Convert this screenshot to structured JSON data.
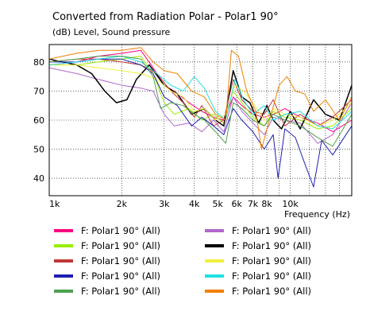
{
  "chart_data": {
    "type": "line",
    "title": "Converted from Radiation Polar - Polar1 90°",
    "ylabel": "(dB)  Level, Sound pressure",
    "xlabel": "Frequency  (Hz)",
    "x_scale": "log",
    "xlim": [
      1000,
      18000
    ],
    "ylim": [
      34,
      86
    ],
    "grid": true,
    "x_ticks": [
      {
        "value": 1000,
        "label": "1k"
      },
      {
        "value": 2000,
        "label": "2k"
      },
      {
        "value": 3000,
        "label": "3k"
      },
      {
        "value": 4000,
        "label": "4k"
      },
      {
        "value": 5000,
        "label": "5k"
      },
      {
        "value": 6000,
        "label": "6k"
      },
      {
        "value": 7000,
        "label": "7k"
      },
      {
        "value": 8000,
        "label": "8k"
      },
      {
        "value": 10000,
        "label": "10k"
      }
    ],
    "x_minor_ticks": [
      9000,
      12000,
      14000,
      16000
    ],
    "y_ticks": [
      40,
      50,
      60,
      70,
      80
    ],
    "legend_position": "bottom",
    "series": [
      {
        "name": "F: Polar1 90°  (All)",
        "color": "#ff0080",
        "points": [
          [
            1000,
            79
          ],
          [
            1300,
            80
          ],
          [
            1600,
            82
          ],
          [
            2000,
            83
          ],
          [
            2400,
            84
          ],
          [
            2700,
            78
          ],
          [
            3000,
            72
          ],
          [
            3300,
            70
          ],
          [
            3800,
            66
          ],
          [
            4300,
            63
          ],
          [
            4800,
            61
          ],
          [
            5300,
            60
          ],
          [
            5800,
            68
          ],
          [
            6300,
            65
          ],
          [
            7000,
            62
          ],
          [
            7800,
            61
          ],
          [
            8500,
            62
          ],
          [
            9500,
            64
          ],
          [
            11000,
            61
          ],
          [
            13000,
            59
          ],
          [
            15000,
            56
          ],
          [
            18000,
            60
          ]
        ]
      },
      {
        "name": "F: Polar1 90°  (All)",
        "color": "#b266cc",
        "points": [
          [
            1000,
            78
          ],
          [
            1300,
            76
          ],
          [
            1600,
            74
          ],
          [
            2000,
            72
          ],
          [
            2400,
            71
          ],
          [
            2700,
            70
          ],
          [
            3000,
            62
          ],
          [
            3300,
            58
          ],
          [
            3800,
            59
          ],
          [
            4300,
            56
          ],
          [
            4800,
            60
          ],
          [
            5300,
            56
          ],
          [
            5800,
            68
          ],
          [
            6300,
            63
          ],
          [
            7000,
            59
          ],
          [
            7800,
            55
          ],
          [
            8500,
            61
          ],
          [
            9500,
            60
          ],
          [
            11000,
            59
          ],
          [
            13000,
            52
          ],
          [
            15000,
            55
          ],
          [
            18000,
            66
          ]
        ]
      },
      {
        "name": "F: Polar1 90°  (All)",
        "color": "#99ee00",
        "points": [
          [
            1000,
            79
          ],
          [
            1300,
            79
          ],
          [
            1600,
            80
          ],
          [
            2000,
            81
          ],
          [
            2400,
            82
          ],
          [
            2700,
            76
          ],
          [
            3000,
            66
          ],
          [
            3300,
            62
          ],
          [
            3800,
            64
          ],
          [
            4300,
            60
          ],
          [
            4800,
            62
          ],
          [
            5300,
            59
          ],
          [
            5800,
            70
          ],
          [
            6300,
            66
          ],
          [
            7000,
            61
          ],
          [
            7800,
            58
          ],
          [
            8500,
            63
          ],
          [
            9500,
            61
          ],
          [
            11000,
            60
          ],
          [
            13000,
            57
          ],
          [
            15000,
            58
          ],
          [
            18000,
            64
          ]
        ]
      },
      {
        "name": "F: Polar1 90°  (All)",
        "color": "#000000",
        "points": [
          [
            1000,
            81
          ],
          [
            1300,
            79
          ],
          [
            1500,
            76
          ],
          [
            1700,
            70
          ],
          [
            1900,
            66
          ],
          [
            2100,
            67
          ],
          [
            2300,
            74
          ],
          [
            2600,
            79
          ],
          [
            3000,
            72
          ],
          [
            3400,
            69
          ],
          [
            3900,
            62
          ],
          [
            4400,
            64
          ],
          [
            4900,
            60
          ],
          [
            5300,
            58
          ],
          [
            5800,
            77
          ],
          [
            6300,
            68
          ],
          [
            6800,
            66
          ],
          [
            7400,
            59
          ],
          [
            8000,
            65
          ],
          [
            8500,
            60
          ],
          [
            9200,
            57
          ],
          [
            10000,
            63
          ],
          [
            11000,
            57
          ],
          [
            12500,
            67
          ],
          [
            14000,
            62
          ],
          [
            16000,
            60
          ],
          [
            18000,
            72
          ]
        ]
      },
      {
        "name": "F: Polar1 90°  (All)",
        "color": "#c03838",
        "points": [
          [
            1000,
            80
          ],
          [
            1300,
            81
          ],
          [
            1600,
            81
          ],
          [
            2000,
            80
          ],
          [
            2400,
            79
          ],
          [
            2800,
            76
          ],
          [
            3200,
            70
          ],
          [
            3600,
            66
          ],
          [
            4000,
            61
          ],
          [
            4300,
            65
          ],
          [
            4800,
            58
          ],
          [
            5300,
            60
          ],
          [
            5800,
            74
          ],
          [
            6300,
            67
          ],
          [
            7000,
            63
          ],
          [
            7800,
            62
          ],
          [
            8500,
            67
          ],
          [
            9500,
            58
          ],
          [
            11000,
            62
          ],
          [
            13000,
            58
          ],
          [
            15000,
            61
          ],
          [
            18000,
            67
          ]
        ]
      },
      {
        "name": "F: Polar1 90°  (All)",
        "color": "#f0f040",
        "points": [
          [
            1000,
            79
          ],
          [
            1300,
            79
          ],
          [
            1600,
            78
          ],
          [
            2000,
            77
          ],
          [
            2400,
            76
          ],
          [
            2800,
            74
          ],
          [
            3200,
            70
          ],
          [
            3600,
            68
          ],
          [
            4000,
            63
          ],
          [
            4400,
            64
          ],
          [
            4900,
            60
          ],
          [
            5400,
            62
          ],
          [
            5900,
            72
          ],
          [
            6400,
            70
          ],
          [
            7000,
            66
          ],
          [
            7800,
            60
          ],
          [
            8500,
            64
          ],
          [
            9500,
            62
          ],
          [
            11000,
            61
          ],
          [
            13000,
            58
          ],
          [
            15000,
            60
          ],
          [
            18000,
            66
          ]
        ]
      },
      {
        "name": "F: Polar1 90°  (All)",
        "color": "#2020b0",
        "points": [
          [
            1000,
            80
          ],
          [
            1300,
            80
          ],
          [
            1600,
            81
          ],
          [
            2000,
            81
          ],
          [
            2400,
            79
          ],
          [
            2700,
            76
          ],
          [
            3000,
            68
          ],
          [
            3400,
            65
          ],
          [
            3900,
            58
          ],
          [
            4300,
            61
          ],
          [
            4800,
            58
          ],
          [
            5300,
            55
          ],
          [
            5800,
            64
          ],
          [
            6300,
            60
          ],
          [
            7000,
            56
          ],
          [
            7800,
            50
          ],
          [
            8500,
            55
          ],
          [
            8900,
            40
          ],
          [
            9500,
            57
          ],
          [
            10500,
            54
          ],
          [
            11500,
            45
          ],
          [
            12500,
            37
          ],
          [
            13500,
            53
          ],
          [
            15000,
            48
          ],
          [
            18000,
            58
          ]
        ]
      },
      {
        "name": "F: Polar1 90°  (All)",
        "color": "#20e0e0",
        "points": [
          [
            1000,
            79
          ],
          [
            1300,
            80
          ],
          [
            1600,
            81
          ],
          [
            2000,
            82
          ],
          [
            2400,
            80
          ],
          [
            2800,
            76
          ],
          [
            3200,
            72
          ],
          [
            3600,
            70
          ],
          [
            4000,
            75
          ],
          [
            4400,
            71
          ],
          [
            4900,
            63
          ],
          [
            5400,
            60
          ],
          [
            5900,
            74
          ],
          [
            6400,
            67
          ],
          [
            7000,
            62
          ],
          [
            7800,
            65
          ],
          [
            8500,
            60
          ],
          [
            9500,
            62
          ],
          [
            11000,
            63
          ],
          [
            13000,
            58
          ],
          [
            15000,
            57
          ],
          [
            18000,
            63
          ]
        ]
      },
      {
        "name": "F: Polar1 90°  (All)",
        "color": "#50a050",
        "points": [
          [
            1000,
            80
          ],
          [
            1300,
            81
          ],
          [
            1600,
            82
          ],
          [
            2000,
            82
          ],
          [
            2400,
            81
          ],
          [
            2700,
            75
          ],
          [
            2900,
            64
          ],
          [
            3200,
            66
          ],
          [
            3600,
            65
          ],
          [
            4000,
            62
          ],
          [
            4400,
            60
          ],
          [
            4900,
            56
          ],
          [
            5400,
            52
          ],
          [
            5800,
            66
          ],
          [
            6300,
            64
          ],
          [
            7000,
            60
          ],
          [
            7800,
            58
          ],
          [
            8500,
            62
          ],
          [
            9500,
            60
          ],
          [
            11000,
            58
          ],
          [
            13000,
            54
          ],
          [
            15000,
            51
          ],
          [
            18000,
            62
          ]
        ]
      },
      {
        "name": "F: Polar1 90°  (All)",
        "color": "#f08000",
        "points": [
          [
            1000,
            81
          ],
          [
            1300,
            83
          ],
          [
            1600,
            84
          ],
          [
            2000,
            84
          ],
          [
            2400,
            85
          ],
          [
            2700,
            80
          ],
          [
            3000,
            77
          ],
          [
            3400,
            76
          ],
          [
            3900,
            70
          ],
          [
            4400,
            68
          ],
          [
            4900,
            62
          ],
          [
            5400,
            60
          ],
          [
            5700,
            84
          ],
          [
            6100,
            82
          ],
          [
            6600,
            70
          ],
          [
            7200,
            63
          ],
          [
            7600,
            50
          ],
          [
            8200,
            60
          ],
          [
            9000,
            72
          ],
          [
            9700,
            75
          ],
          [
            10500,
            70
          ],
          [
            11500,
            69
          ],
          [
            12500,
            63
          ],
          [
            14000,
            67
          ],
          [
            16000,
            60
          ],
          [
            18000,
            68
          ]
        ]
      }
    ]
  }
}
